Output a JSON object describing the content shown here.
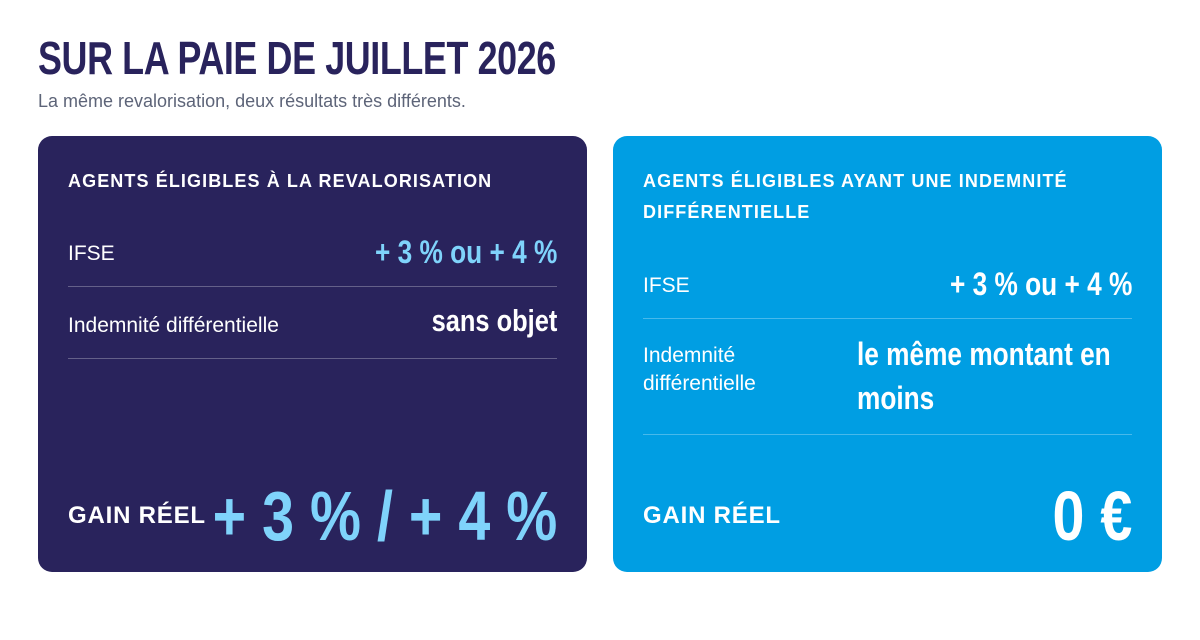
{
  "header": {
    "title": "SUR LA PAIE DE JUILLET 2026",
    "subtitle": "La même revalorisation, deux résultats très différents."
  },
  "cards": [
    {
      "heading": "AGENTS ÉLIGIBLES À LA REVALORISATION",
      "rows": [
        {
          "label": "IFSE",
          "value": "+ 3 % ou + 4 %"
        },
        {
          "label": "Indemnité différentielle",
          "value": "sans objet"
        }
      ],
      "gain_label": "GAIN RÉEL",
      "gain_value": "+ 3 % / + 4 %"
    },
    {
      "heading": "AGENTS ÉLIGIBLES AYANT UNE INDEMNITÉ DIFFÉRENTIELLE",
      "rows": [
        {
          "label": "IFSE",
          "value": "+ 3 % ou + 4 %"
        },
        {
          "label": "Indemnité différentielle",
          "value": "le même montant en moins"
        }
      ],
      "gain_label": "GAIN RÉEL",
      "gain_value": "0 €"
    }
  ],
  "colors": {
    "navy": "#29235c",
    "blue": "#009ee3",
    "accent_light_blue": "#7fd3fb",
    "subtitle_grey": "#5d6478"
  }
}
